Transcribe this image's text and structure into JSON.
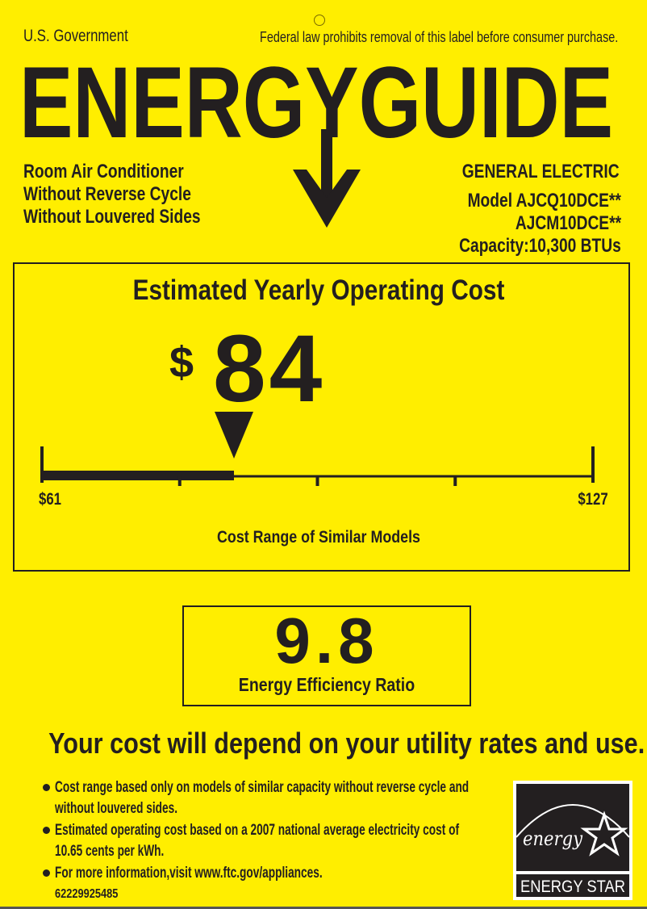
{
  "header": {
    "government": "U.S. Government",
    "notice": "Federal law prohibits removal of this label before consumer purchase.",
    "title": "ENERGYGUIDE"
  },
  "product": {
    "lines": [
      "Room Air Conditioner",
      "Without Reverse Cycle",
      "Without Louvered Sides"
    ],
    "manufacturer": "GENERAL ELECTRIC",
    "model_line1": "Model AJCQ10DCE**",
    "model_line2": "AJCM10DCE**",
    "capacity": "Capacity:10,300 BTUs"
  },
  "cost": {
    "heading": "Estimated Yearly Operating Cost",
    "currency": "$",
    "value": "84",
    "range_min_label": "$61",
    "range_max_label": "$127",
    "range_min": 61,
    "range_max": 127,
    "current": 84,
    "range_caption": "Cost Range of Similar Models"
  },
  "efficiency": {
    "value": "9.8",
    "label": "Energy Efficiency Ratio"
  },
  "disclaimer": "Your cost will depend on your utility rates and use.",
  "footnotes": [
    {
      "line1": "Cost range based only on models of similar capacity without reverse cycle and",
      "line2": "without louvered sides."
    },
    {
      "line1": "Estimated operating cost based on a 2007 national average electricity cost of",
      "line2": "10.65 cents per kWh."
    },
    {
      "line1": "For more information,visit www.ftc.gov/appliances.",
      "line2": ""
    }
  ],
  "barcode_number": "62229925485",
  "energy_star": {
    "script": "energy",
    "label": "ENERGY STAR"
  },
  "colors": {
    "background": "#FFEE00",
    "ink": "#231F20"
  }
}
